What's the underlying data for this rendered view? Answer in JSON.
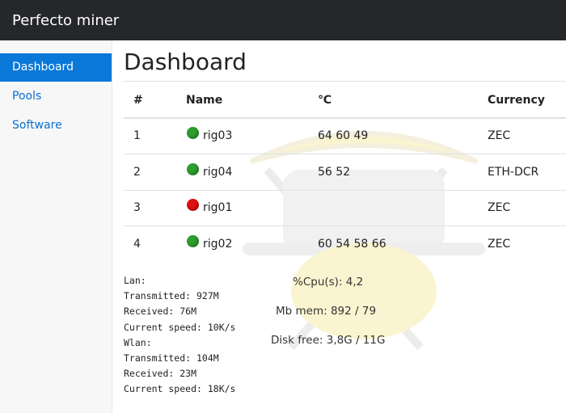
{
  "navbar": {
    "title": "Perfecto miner"
  },
  "sidebar": {
    "items": [
      {
        "label": "Dashboard",
        "active": true
      },
      {
        "label": "Pools",
        "active": false
      },
      {
        "label": "Software",
        "active": false
      }
    ]
  },
  "main": {
    "heading": "Dashboard",
    "table": {
      "headers": [
        "#",
        "Name",
        "℃",
        "Currency"
      ],
      "rows": [
        {
          "number": 1,
          "name": "rig03",
          "temps": "64 60 49",
          "currency": "ZEC",
          "status_color": "#2e9e2e"
        },
        {
          "number": 2,
          "name": "rig04",
          "temps": "56 52",
          "currency": "ETH-DCR",
          "status_color": "#2e9e2e"
        },
        {
          "number": 3,
          "name": "rig01",
          "temps": null,
          "currency": "ZEC",
          "status_color": "#e01010"
        },
        {
          "number": 4,
          "name": "rig02",
          "temps": "60 54 58 66",
          "currency": "ZEC",
          "status_color": "#2e9e2e"
        }
      ]
    },
    "network": [
      "Lan:",
      "Transmitted: 927M",
      "Received: 76M",
      "Current speed: 10K/s",
      "Wlan:",
      "Transmitted: 104M",
      "Received: 23M",
      "Current speed: 18K/s"
    ],
    "system": [
      "%Cpu(s): 4,2",
      "Mb mem: 892 / 79",
      "Disk free: 3,8G / 11G"
    ]
  }
}
